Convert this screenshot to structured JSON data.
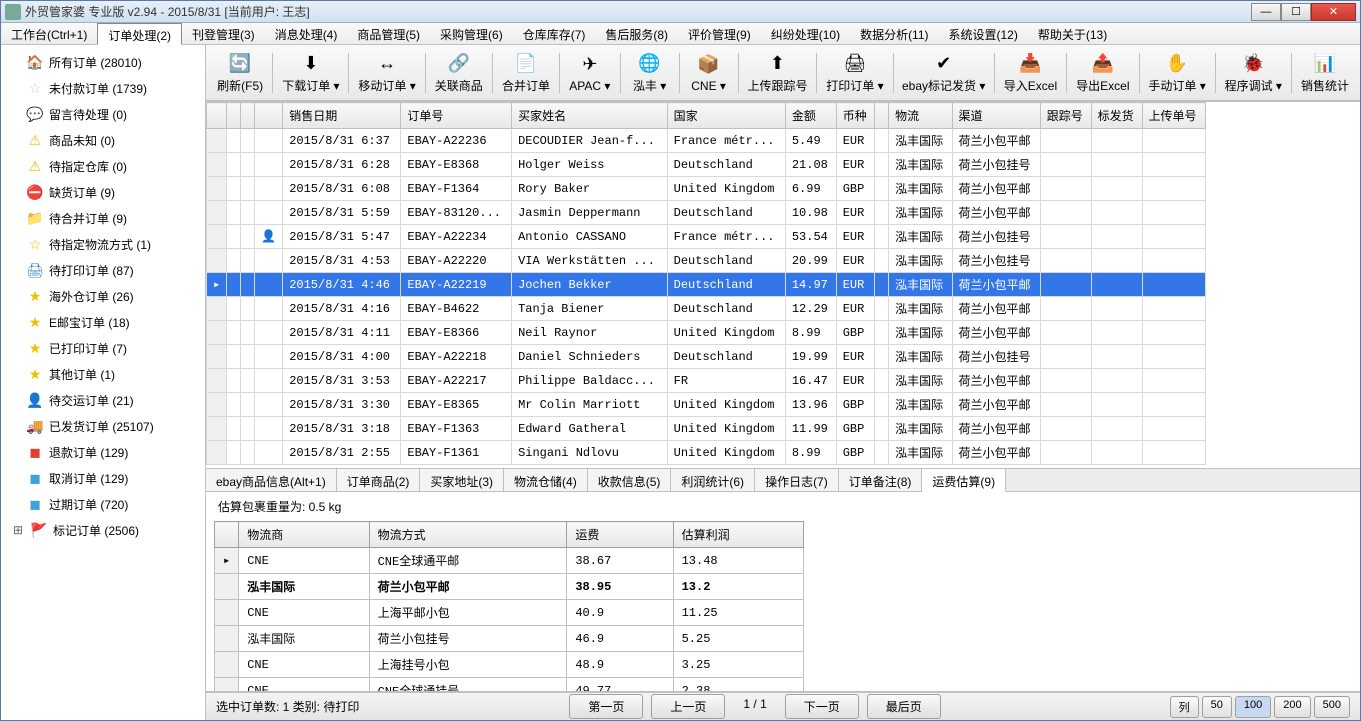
{
  "titlebar": {
    "text": "外贸管家婆 专业版 v2.94 - 2015/8/31 [当前用户: 王志]"
  },
  "menus": [
    {
      "label": "工作台(Ctrl+1)",
      "active": false
    },
    {
      "label": "订单处理(2)",
      "active": true
    },
    {
      "label": "刊登管理(3)",
      "active": false
    },
    {
      "label": "消息处理(4)",
      "active": false
    },
    {
      "label": "商品管理(5)",
      "active": false
    },
    {
      "label": "采购管理(6)",
      "active": false
    },
    {
      "label": "仓库库存(7)",
      "active": false
    },
    {
      "label": "售后服务(8)",
      "active": false
    },
    {
      "label": "评价管理(9)",
      "active": false
    },
    {
      "label": "纠纷处理(10)",
      "active": false
    },
    {
      "label": "数据分析(11)",
      "active": false
    },
    {
      "label": "系统设置(12)",
      "active": false
    },
    {
      "label": "帮助关于(13)",
      "active": false
    }
  ],
  "sidebar": [
    {
      "icon": "🏠",
      "color": "#f29423",
      "label": "所有订单 (28010)"
    },
    {
      "icon": "☆",
      "color": "#d0d0d0",
      "label": "未付款订单 (1739)"
    },
    {
      "icon": "💬",
      "color": "#2b9ae0",
      "label": "留言待处理 (0)"
    },
    {
      "icon": "⚠",
      "color": "#f0c000",
      "label": "商品未知 (0)"
    },
    {
      "icon": "⚠",
      "color": "#f0c000",
      "label": "待指定仓库 (0)"
    },
    {
      "icon": "⛔",
      "color": "#e04030",
      "label": "缺货订单 (9)"
    },
    {
      "icon": "📁",
      "color": "#f0a030",
      "label": "待合并订单 (9)"
    },
    {
      "icon": "☆",
      "color": "#f0c000",
      "label": "待指定物流方式 (1)"
    },
    {
      "icon": "🖨",
      "color": "#4080c0",
      "label": "待打印订单 (87)"
    },
    {
      "icon": "★",
      "color": "#f0c000",
      "label": "海外仓订单 (26)"
    },
    {
      "icon": "★",
      "color": "#f0c000",
      "label": "E邮宝订单 (18)"
    },
    {
      "icon": "★",
      "color": "#f0c000",
      "label": "已打印订单 (7)"
    },
    {
      "icon": "★",
      "color": "#f0c000",
      "label": "其他订单 (1)"
    },
    {
      "icon": "👤",
      "color": "#40a040",
      "label": "待交运订单 (21)"
    },
    {
      "icon": "🚚",
      "color": "#4080e0",
      "label": "已发货订单 (25107)"
    },
    {
      "icon": "◼",
      "color": "#e04030",
      "label": "退款订单 (129)"
    },
    {
      "icon": "◼",
      "color": "#40a0e0",
      "label": "取消订单 (129)"
    },
    {
      "icon": "◼",
      "color": "#40a0e0",
      "label": "过期订单 (720)"
    },
    {
      "icon": "🚩",
      "color": "#e04030",
      "label": "标记订单 (2506)",
      "lv0": true,
      "expand": true
    }
  ],
  "toolbar": [
    {
      "icon": "🔄",
      "label": "刷新(F5)"
    },
    {
      "icon": "⬇",
      "label": "下载订单 ▾"
    },
    {
      "icon": "↔",
      "label": "移动订单 ▾"
    },
    {
      "icon": "🔗",
      "label": "关联商品"
    },
    {
      "icon": "📄",
      "label": "合并订单"
    },
    {
      "icon": "✈",
      "label": "APAC ▾"
    },
    {
      "icon": "🌐",
      "label": "泓丰 ▾"
    },
    {
      "icon": "📦",
      "label": "CNE ▾"
    },
    {
      "icon": "⬆",
      "label": "上传跟踪号"
    },
    {
      "icon": "🖨",
      "label": "打印订单 ▾"
    },
    {
      "icon": "✔",
      "label": "ebay标记发货 ▾"
    },
    {
      "icon": "📥",
      "label": "导入Excel"
    },
    {
      "icon": "📤",
      "label": "导出Excel"
    },
    {
      "icon": "✋",
      "label": "手动订单 ▾"
    },
    {
      "icon": "🐞",
      "label": "程序调试 ▾"
    },
    {
      "icon": "📊",
      "label": "销售统计"
    }
  ],
  "grid": {
    "columns": [
      "",
      "",
      "",
      "",
      "销售日期",
      "订单号",
      "买家姓名",
      "国家",
      "金额",
      "币种",
      "",
      "物流",
      "渠道",
      "跟踪号",
      "标发货",
      "上传单号"
    ],
    "selectedRow": 6,
    "rows": [
      {
        "date": "2015/8/31 6:37",
        "order": "EBAY-A22236",
        "buyer": "DECOUDIER Jean-f...",
        "country": "France métr...",
        "amount": "5.49",
        "cur": "EUR",
        "ship": "泓丰国际",
        "channel": "荷兰小包平邮"
      },
      {
        "date": "2015/8/31 6:28",
        "order": "EBAY-E8368",
        "buyer": "Holger Weiss",
        "country": "Deutschland",
        "amount": "21.08",
        "cur": "EUR",
        "ship": "泓丰国际",
        "channel": "荷兰小包挂号"
      },
      {
        "date": "2015/8/31 6:08",
        "order": "EBAY-F1364",
        "buyer": "Rory Baker",
        "country": "United Kingdom",
        "amount": "6.99",
        "cur": "GBP",
        "ship": "泓丰国际",
        "channel": "荷兰小包平邮"
      },
      {
        "date": "2015/8/31 5:59",
        "order": "EBAY-83120...",
        "buyer": "Jasmin Deppermann",
        "country": "Deutschland",
        "amount": "10.98",
        "cur": "EUR",
        "ship": "泓丰国际",
        "channel": "荷兰小包平邮"
      },
      {
        "date": "2015/8/31 5:47",
        "order": "EBAY-A22234",
        "buyer": "Antonio CASSANO",
        "country": "France métr...",
        "amount": "53.54",
        "cur": "EUR",
        "ship": "泓丰国际",
        "channel": "荷兰小包挂号",
        "person": true
      },
      {
        "date": "2015/8/31 4:53",
        "order": "EBAY-A22220",
        "buyer": "VIA Werkstätten ...",
        "country": "Deutschland",
        "amount": "20.99",
        "cur": "EUR",
        "ship": "泓丰国际",
        "channel": "荷兰小包挂号"
      },
      {
        "date": "2015/8/31 4:46",
        "order": "EBAY-A22219",
        "buyer": "Jochen Bekker",
        "country": "Deutschland",
        "amount": "14.97",
        "cur": "EUR",
        "ship": "泓丰国际",
        "channel": "荷兰小包平邮"
      },
      {
        "date": "2015/8/31 4:16",
        "order": "EBAY-B4622",
        "buyer": "Tanja Biener",
        "country": "Deutschland",
        "amount": "12.29",
        "cur": "EUR",
        "ship": "泓丰国际",
        "channel": "荷兰小包平邮"
      },
      {
        "date": "2015/8/31 4:11",
        "order": "EBAY-E8366",
        "buyer": "Neil Raynor",
        "country": "United Kingdom",
        "amount": "8.99",
        "cur": "GBP",
        "ship": "泓丰国际",
        "channel": "荷兰小包平邮"
      },
      {
        "date": "2015/8/31 4:00",
        "order": "EBAY-A22218",
        "buyer": "Daniel Schnieders",
        "country": "Deutschland",
        "amount": "19.99",
        "cur": "EUR",
        "ship": "泓丰国际",
        "channel": "荷兰小包挂号"
      },
      {
        "date": "2015/8/31 3:53",
        "order": "EBAY-A22217",
        "buyer": "Philippe Baldacc...",
        "country": "FR",
        "amount": "16.47",
        "cur": "EUR",
        "ship": "泓丰国际",
        "channel": "荷兰小包平邮"
      },
      {
        "date": "2015/8/31 3:30",
        "order": "EBAY-E8365",
        "buyer": "Mr Colin Marriott",
        "country": "United Kingdom",
        "amount": "13.96",
        "cur": "GBP",
        "ship": "泓丰国际",
        "channel": "荷兰小包平邮"
      },
      {
        "date": "2015/8/31 3:18",
        "order": "EBAY-F1363",
        "buyer": "Edward Gatheral",
        "country": "United Kingdom",
        "amount": "11.99",
        "cur": "GBP",
        "ship": "泓丰国际",
        "channel": "荷兰小包平邮"
      },
      {
        "date": "2015/8/31 2:55",
        "order": "EBAY-F1361",
        "buyer": "Singani Ndlovu",
        "country": "United Kingdom",
        "amount": "8.99",
        "cur": "GBP",
        "ship": "泓丰国际",
        "channel": "荷兰小包平邮"
      }
    ]
  },
  "bottomTabs": [
    {
      "label": "ebay商品信息(Alt+1)",
      "active": false
    },
    {
      "label": "订单商品(2)",
      "active": false
    },
    {
      "label": "买家地址(3)",
      "active": false
    },
    {
      "label": "物流仓储(4)",
      "active": false
    },
    {
      "label": "收款信息(5)",
      "active": false
    },
    {
      "label": "利润统计(6)",
      "active": false
    },
    {
      "label": "操作日志(7)",
      "active": false
    },
    {
      "label": "订单备注(8)",
      "active": false
    },
    {
      "label": "运费估算(9)",
      "active": true
    }
  ],
  "estimate": {
    "label": "估算包裹重量为: 0.5 kg",
    "columns": [
      "",
      "物流商",
      "物流方式",
      "运费",
      "估算利润"
    ],
    "rows": [
      {
        "carrier": "CNE",
        "method": "CNE全球通平邮",
        "fee": "38.67",
        "profit": "13.48"
      },
      {
        "carrier": "泓丰国际",
        "method": "荷兰小包平邮",
        "fee": "38.95",
        "profit": "13.2",
        "bold": true
      },
      {
        "carrier": "CNE",
        "method": "上海平邮小包",
        "fee": "40.9",
        "profit": "11.25"
      },
      {
        "carrier": "泓丰国际",
        "method": "荷兰小包挂号",
        "fee": "46.9",
        "profit": "5.25"
      },
      {
        "carrier": "CNE",
        "method": "上海挂号小包",
        "fee": "48.9",
        "profit": "3.25"
      },
      {
        "carrier": "CNE",
        "method": "CNE全球通挂号",
        "fee": "49.77",
        "profit": "2.38"
      }
    ]
  },
  "statusbar": {
    "selected": "选中订单数: 1 类别: 待打印",
    "first": "第一页",
    "prev": "上一页",
    "page": "1 / 1",
    "next": "下一页",
    "last": "最后页",
    "listBtn": "列",
    "sizes": [
      "50",
      "100",
      "200",
      "500"
    ],
    "activeSize": "100"
  }
}
